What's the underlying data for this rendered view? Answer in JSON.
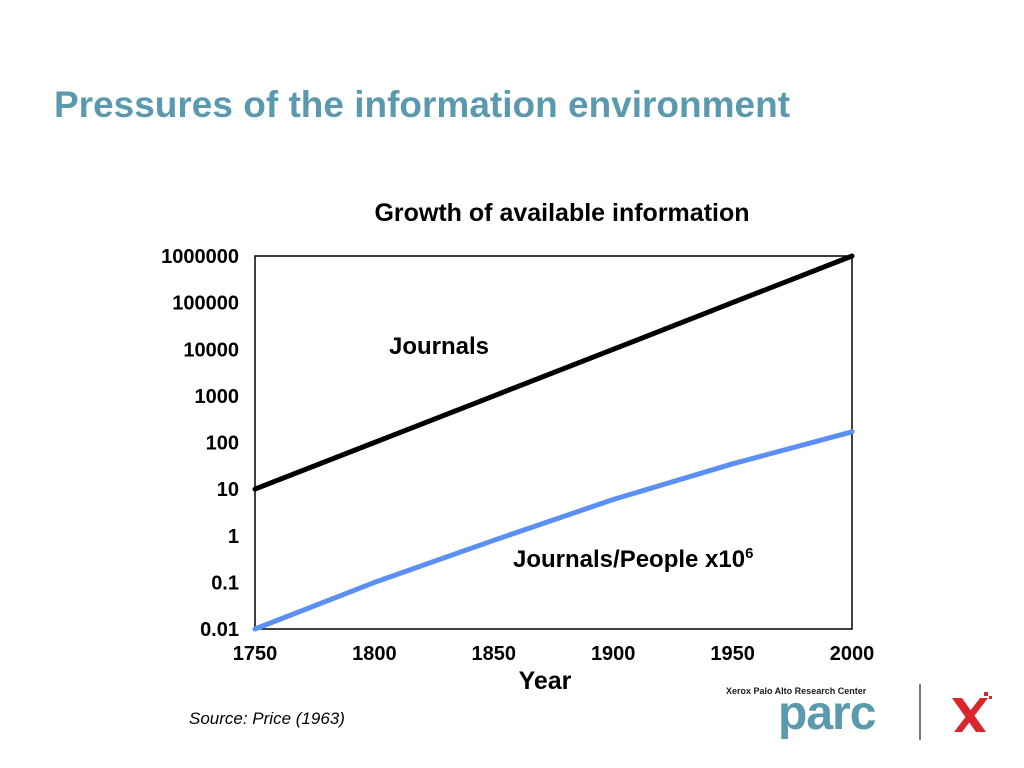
{
  "slide": {
    "title": "Pressures of the information environment",
    "source": "Source: Price (1963)"
  },
  "logo": {
    "caption": "Xerox Palo Alto Research Center",
    "wordmark": "parc",
    "icon": "xerox-x-icon",
    "color": "#5b9aae",
    "mark_color": "#d9262c"
  },
  "chart_data": {
    "type": "line",
    "title": "Growth of available information",
    "xlabel": "Year",
    "ylabel": "",
    "x_ticks": [
      "1750",
      "1800",
      "1850",
      "1900",
      "1950",
      "2000"
    ],
    "y_ticks": [
      "0.01",
      "0.1",
      "1",
      "10",
      "100",
      "1000",
      "10000",
      "100000",
      "1000000"
    ],
    "xlim": [
      1750,
      2000
    ],
    "ylim": [
      0.01,
      1000000
    ],
    "y_scale": "log",
    "grid": false,
    "legend": "none",
    "series": [
      {
        "name": "Journals",
        "color": "#000000",
        "label_position": "above-line",
        "points": [
          [
            1750,
            10
          ],
          [
            1800,
            100
          ],
          [
            1850,
            1000
          ],
          [
            1900,
            10000
          ],
          [
            1950,
            100000
          ],
          [
            2000,
            1000000
          ]
        ]
      },
      {
        "name": "Journals/People x10",
        "name_superscript": "6",
        "color": "#5b8ff2",
        "label_position": "above-line",
        "points": [
          [
            1750,
            0.01
          ],
          [
            1800,
            0.1
          ],
          [
            1850,
            0.8
          ],
          [
            1900,
            6
          ],
          [
            1950,
            35
          ],
          [
            2000,
            170
          ]
        ]
      }
    ]
  }
}
